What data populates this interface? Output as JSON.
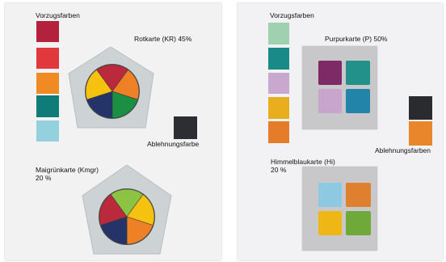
{
  "left": {
    "pref_label": "Vorzugsfarben",
    "pref_colors": [
      "#b4213d",
      "#e0383c",
      "#f08a23",
      "#0f7c7a",
      "#93d1df"
    ],
    "card1": {
      "label": "Rotkarte (KR) 45%",
      "wheel": [
        "#bb2a3c",
        "#ee8126",
        "#1b9045",
        "#253468",
        "#f4c20f"
      ]
    },
    "reject_label": "Ablehnungsfarbe",
    "reject_color": "#2c2e33",
    "card2": {
      "label_line1": "Maigrünkarte (Kmgr)",
      "label_line2": "20 %",
      "wheel": [
        "#8cc342",
        "#f4c20f",
        "#ee8126",
        "#253468",
        "#bb2a3c"
      ]
    }
  },
  "right": {
    "pref_label": "Vorzugsfarben",
    "pref_colors": [
      "#9fd0b0",
      "#198a86",
      "#c8a8cf",
      "#e8ae1e",
      "#e57c2a"
    ],
    "card1": {
      "label": "Purpurkarte (P) 50%",
      "tiles": [
        "#7d2a66",
        "#219189",
        "#c7a5cc",
        "#2284a8"
      ]
    },
    "reject_label": "Ablehnungsfarben",
    "reject_colors": [
      "#2a2b2e",
      "#e9862b"
    ],
    "card2": {
      "label_line1": "Himmelblaukarte (Hi)",
      "label_line2": "20 %",
      "tiles": [
        "#8ec9e2",
        "#df8030",
        "#efb716",
        "#6fa93a"
      ]
    }
  }
}
